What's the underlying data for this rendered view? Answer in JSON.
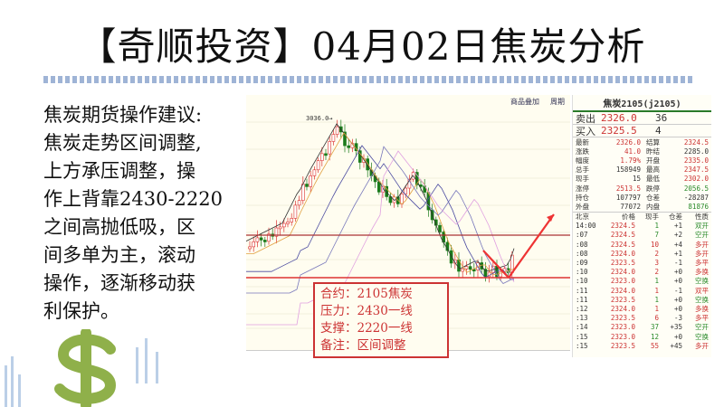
{
  "title": "【奇顺投资】04月02日焦炭分析",
  "advice": [
    "焦炭期货操作建议:",
    "焦炭走势区间调整,",
    "上方承压调整，操",
    "作上背靠2430-2220",
    "之间高抛低吸，区",
    "间多单为主，滚动",
    "操作，逐渐移动获",
    "利保护。"
  ],
  "chart": {
    "toolbar": [
      "商品叠加",
      "周期"
    ],
    "peak_label": "3036.0",
    "note": [
      "合约：2105焦炭",
      "压力：2430一线",
      "支撑：2220一线",
      "备注：区间调整"
    ],
    "colors": {
      "up": "#d33",
      "down": "#1a7a1a",
      "line": "#c33"
    }
  },
  "quote": {
    "header": "焦炭2105(j2105)",
    "ask": {
      "label": "卖出",
      "price": "2326.0",
      "vol": "36"
    },
    "bid": {
      "label": "买入",
      "price": "2325.5",
      "vol": "4"
    },
    "stats": [
      [
        "最新",
        "2326.0",
        "结算",
        "2324.5"
      ],
      [
        "涨跌",
        "41.0",
        "昨结",
        "2285.0"
      ],
      [
        "幅度",
        "1.79%",
        "开盘",
        "2335.0"
      ],
      [
        "总手",
        "158949",
        "最高",
        "2347.5"
      ],
      [
        "现手",
        "15",
        "最低",
        "2302.0"
      ],
      [
        "涨停",
        "2513.5",
        "跌停",
        "2056.5"
      ],
      [
        "持仓",
        "107797",
        "仓差",
        "-28287"
      ],
      [
        "外盘",
        "77072",
        "内盘",
        "81876"
      ]
    ],
    "tick_header": [
      "北京",
      "价格",
      "现手",
      "仓差",
      "性质"
    ],
    "ticks": [
      [
        "14:00",
        "2324.5",
        "1",
        "+1",
        "双开"
      ],
      [
        ":07",
        "2324.5",
        "7",
        "+2",
        "空开"
      ],
      [
        ":08",
        "2324.5",
        "10",
        "+4",
        "多开"
      ],
      [
        ":08",
        "2324.0",
        "2",
        "+1",
        "多开"
      ],
      [
        ":09",
        "2323.5",
        "3",
        "-1",
        "多平"
      ],
      [
        ":10",
        "2324.0",
        "2",
        "+0",
        "多换"
      ],
      [
        ":10",
        "2323.0",
        "1",
        "+0",
        "空换"
      ],
      [
        ":11",
        "2324.0",
        "1",
        "-1",
        "双平"
      ],
      [
        ":11",
        "2323.5",
        "1",
        "+0",
        "空换"
      ],
      [
        ":12",
        "2324.0",
        "1",
        "+0",
        "多换"
      ],
      [
        ":13",
        "2323.5",
        "6",
        "-3",
        "多平"
      ],
      [
        ":14",
        "2323.0",
        "37",
        "+35",
        "空开"
      ],
      [
        ":15",
        "2323.0",
        "12",
        "+0",
        "空换"
      ],
      [
        ":15",
        "2323.5",
        "55",
        "+45",
        "多开"
      ]
    ]
  }
}
